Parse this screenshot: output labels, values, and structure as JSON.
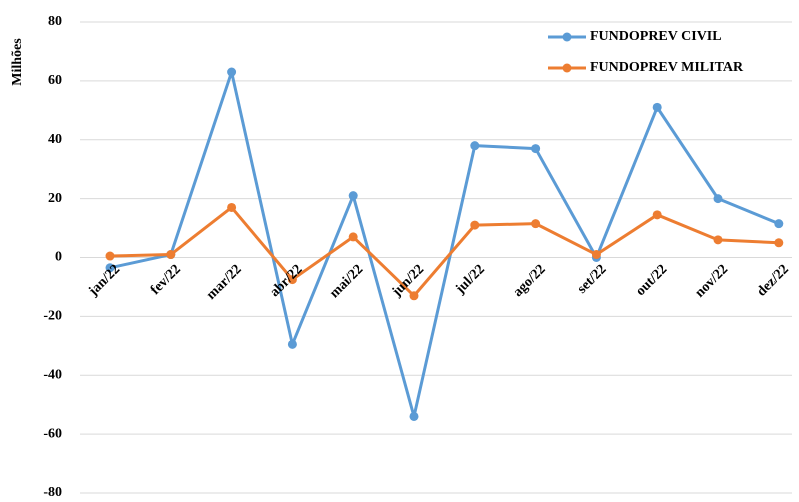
{
  "chart_data": {
    "type": "line",
    "y_label": "Milhões",
    "categories": [
      "jan/22",
      "fev/22",
      "mar/22",
      "abr/22",
      "mai/22",
      "jun/22",
      "jul/22",
      "ago/22",
      "set/22",
      "out/22",
      "nov/22",
      "dez/22"
    ],
    "series": [
      {
        "name": "FUNDOPREV CIVIL",
        "color": "#5b9bd5",
        "values": [
          -3.5,
          1,
          63,
          -29.5,
          21,
          -54,
          38,
          37,
          0,
          51,
          20,
          11.5
        ]
      },
      {
        "name": "FUNDOPREV MILITAR",
        "color": "#ed7d31",
        "values": [
          0.5,
          1,
          17,
          -7.5,
          7,
          -13,
          11,
          11.5,
          1,
          14.5,
          6,
          5
        ]
      }
    ],
    "ylim": [
      -80,
      80
    ],
    "yticks": [
      -80,
      -60,
      -40,
      -20,
      0,
      20,
      40,
      60,
      80
    ],
    "grid": true,
    "legend": "top-right"
  }
}
